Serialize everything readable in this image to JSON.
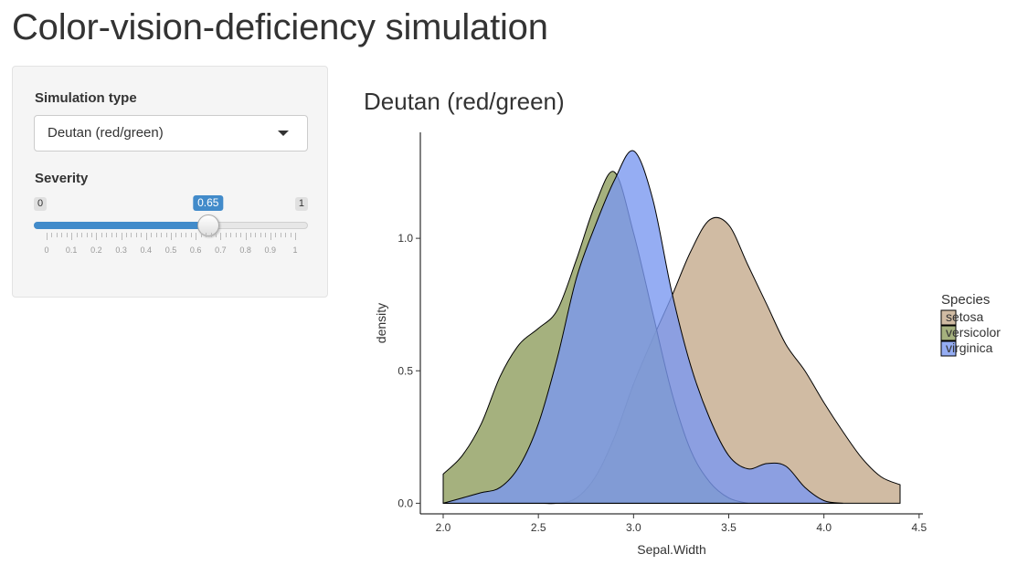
{
  "app": {
    "title": "Color-vision-deficiency simulation"
  },
  "sidebar": {
    "simulation_type": {
      "label": "Simulation type",
      "selected": "Deutan (red/green)"
    },
    "severity": {
      "label": "Severity",
      "min": 0,
      "max": 1,
      "value": 0.65,
      "min_label": "0",
      "max_label": "1",
      "value_label": "0.65",
      "tick_labels": [
        "0",
        "0.1",
        "0.2",
        "0.3",
        "0.4",
        "0.5",
        "0.6",
        "0.7",
        "0.8",
        "0.9",
        "1"
      ]
    }
  },
  "plot": {
    "title": "Deutan (red/green)"
  },
  "chart_data": {
    "type": "area",
    "xlabel": "Sepal.Width",
    "ylabel": "density",
    "xlim": [
      1.88,
      4.52
    ],
    "ylim": [
      -0.04,
      1.4
    ],
    "x_ticks": [
      2.0,
      2.5,
      3.0,
      3.5,
      4.0,
      4.5
    ],
    "x_tick_labels": [
      "2.0",
      "2.5",
      "3.0",
      "3.5",
      "4.0",
      "4.5"
    ],
    "y_ticks": [
      0.0,
      0.5,
      1.0
    ],
    "y_tick_labels": [
      "0.0",
      "0.5",
      "1.0"
    ],
    "grid": false,
    "legend": {
      "title": "Species",
      "placement": "right"
    },
    "series": [
      {
        "name": "setosa",
        "color": "#c4aa8c",
        "x": [
          2.3,
          2.5,
          2.6,
          2.7,
          2.8,
          2.9,
          3.0,
          3.1,
          3.2,
          3.3,
          3.4,
          3.5,
          3.6,
          3.7,
          3.8,
          3.9,
          4.0,
          4.1,
          4.2,
          4.3,
          4.4
        ],
        "y": [
          0.0,
          0.0,
          0.0,
          0.02,
          0.1,
          0.25,
          0.45,
          0.62,
          0.78,
          0.95,
          1.07,
          1.05,
          0.9,
          0.75,
          0.6,
          0.5,
          0.38,
          0.27,
          0.17,
          0.1,
          0.07
        ]
      },
      {
        "name": "versicolor",
        "color": "#8f9e5e",
        "x": [
          2.0,
          2.1,
          2.2,
          2.3,
          2.4,
          2.5,
          2.6,
          2.7,
          2.8,
          2.9,
          3.0,
          3.1,
          3.2,
          3.3,
          3.4,
          3.5,
          3.6
        ],
        "y": [
          0.11,
          0.18,
          0.3,
          0.48,
          0.6,
          0.66,
          0.73,
          0.92,
          1.13,
          1.25,
          1.02,
          0.72,
          0.42,
          0.2,
          0.08,
          0.02,
          0.0
        ]
      },
      {
        "name": "virginica",
        "color": "#7b98f0",
        "x": [
          2.0,
          2.1,
          2.2,
          2.3,
          2.4,
          2.5,
          2.6,
          2.7,
          2.8,
          2.9,
          3.0,
          3.1,
          3.2,
          3.3,
          3.4,
          3.5,
          3.6,
          3.7,
          3.8,
          3.9,
          4.0,
          4.1
        ],
        "y": [
          0.0,
          0.02,
          0.04,
          0.06,
          0.14,
          0.3,
          0.55,
          0.85,
          1.05,
          1.22,
          1.33,
          1.15,
          0.8,
          0.52,
          0.32,
          0.18,
          0.13,
          0.15,
          0.14,
          0.06,
          0.01,
          0.0
        ]
      }
    ]
  }
}
